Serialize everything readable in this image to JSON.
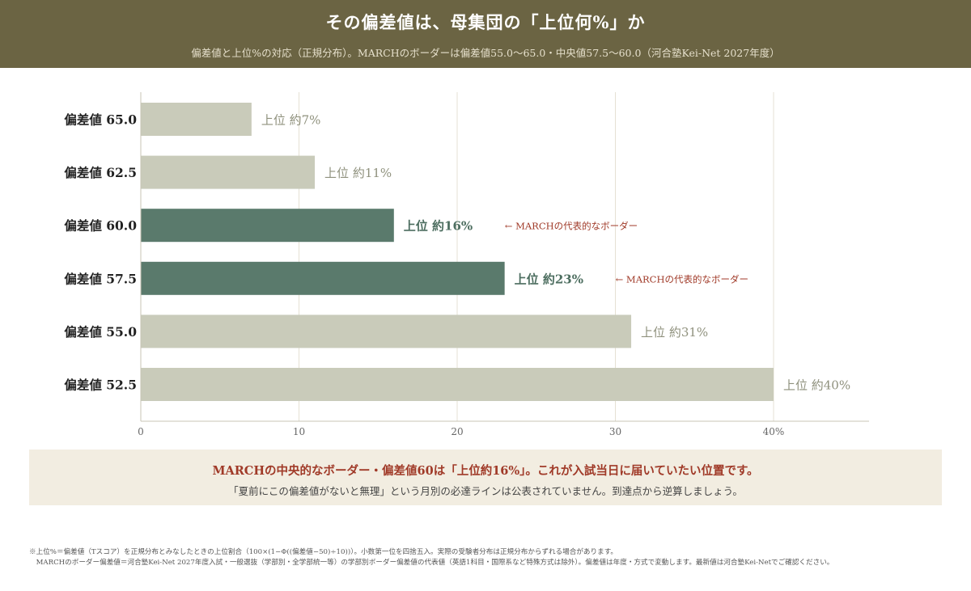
{
  "header": {
    "title": "その偏差値は、母集団の「上位何%」か",
    "subtitle": "偏差値と上位%の対応（正規分布）。MARCHのボーダーは偏差値55.0〜65.0・中央値57.5〜60.0（河合塾Kei-Net 2027年度）"
  },
  "chart_data": {
    "type": "bar",
    "orientation": "horizontal",
    "categories": [
      "偏差値 65.0",
      "偏差値 62.5",
      "偏差値 60.0",
      "偏差値 57.5",
      "偏差値 55.0",
      "偏差値 52.5"
    ],
    "values": [
      7,
      11,
      16,
      23,
      31,
      40
    ],
    "value_labels": [
      "上位 約7%",
      "上位 約11%",
      "上位 約16%",
      "上位 約23%",
      "上位 約31%",
      "上位 約40%"
    ],
    "highlighted": [
      false,
      false,
      true,
      true,
      false,
      false
    ],
    "annotations": [
      "",
      "",
      "← MARCHの代表的なボーダー",
      "← MARCHの代表的なボーダー",
      "",
      ""
    ],
    "xticks": [
      "0",
      "10",
      "20",
      "30",
      "40%"
    ],
    "xlim": [
      0,
      46
    ],
    "grid": true,
    "colors": {
      "bar": "#c9cbba",
      "bar_highlight": "#5a7a6c",
      "label": "#8f917d",
      "label_highlight": "#4d6e60",
      "annotation": "#a03a28",
      "grid": "#e5e1d4",
      "axis": "#c8c4b6"
    }
  },
  "callout": {
    "main": "MARCHの中央的なボーダー・偏差値60は「上位約16%」。これが入試当日に届いていたい位置です。",
    "sub": "「夏前にこの偏差値がないと無理」という月別の必達ラインは公表されていません。到達点から逆算しましょう。"
  },
  "notes": [
    "※上位%＝偏差値（Tスコア）を正規分布とみなしたときの上位割合（100×(1−Φ((偏差値−50)÷10))）。小数第一位を四捨五入。実際の受験者分布は正規分布からずれる場合があります。",
    "　MARCHのボーダー偏差値＝河合塾Kei-Net 2027年度入試・一般選抜（学部別・全学部統一等）の学部別ボーダー偏差値の代表値（英語1科目・国際系など特殊方式は除外）。偏差値は年度・方式で変動します。最新値は河合塾Kei-Netでご確認ください。"
  ]
}
